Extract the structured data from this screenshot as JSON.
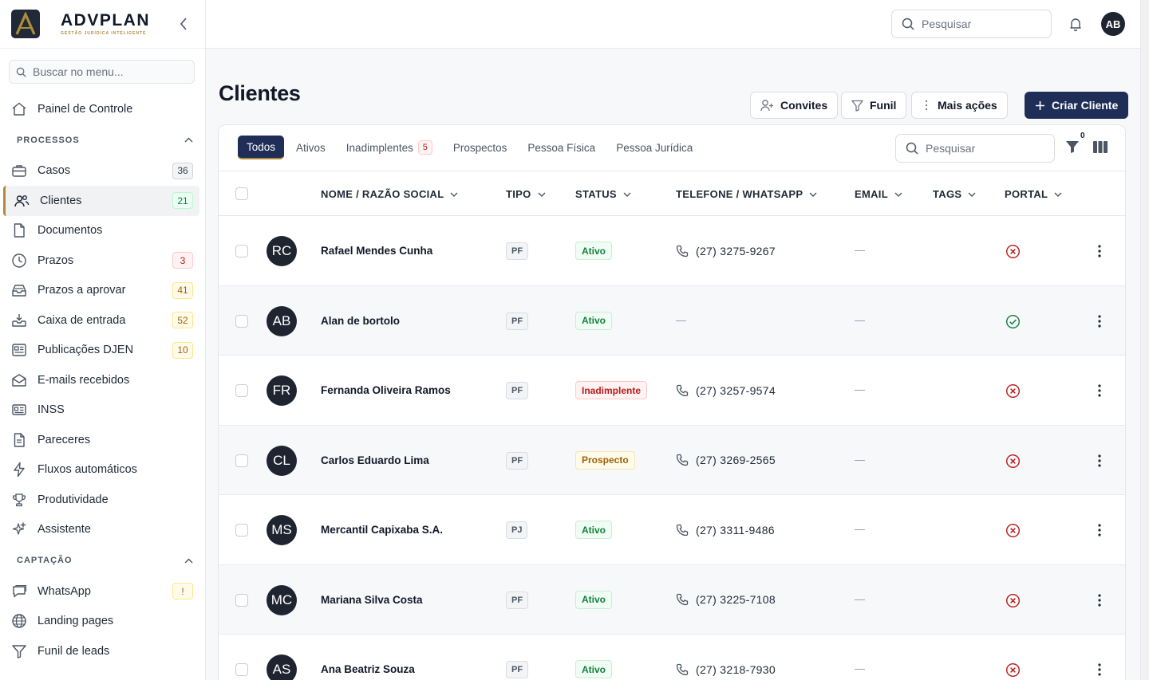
{
  "brand": {
    "name": "ADVPLAN",
    "tagline": "GESTÃO JURÍDICA INTELIGENTE",
    "accent": "#b08b3a",
    "primary": "#1e2e57"
  },
  "sidebar": {
    "search_placeholder": "Buscar no menu...",
    "top_item": {
      "label": "Painel de Controle",
      "icon": "home-icon"
    },
    "sections": [
      {
        "title": "PROCESSOS",
        "items": [
          {
            "label": "Casos",
            "icon": "briefcase-icon",
            "badge": "36",
            "badge_style": "gray"
          },
          {
            "label": "Clientes",
            "icon": "users-icon",
            "badge": "21",
            "badge_style": "green",
            "active": true
          },
          {
            "label": "Documentos",
            "icon": "file-icon"
          },
          {
            "label": "Prazos",
            "icon": "clock-icon",
            "badge": "3",
            "badge_style": "red"
          },
          {
            "label": "Prazos a aprovar",
            "icon": "inbox-stack-icon",
            "badge": "41",
            "badge_style": "amber"
          },
          {
            "label": "Caixa de entrada",
            "icon": "inbox-download-icon",
            "badge": "52",
            "badge_style": "amber"
          },
          {
            "label": "Publicações DJEN",
            "icon": "newspaper-icon",
            "badge": "10",
            "badge_style": "amber"
          },
          {
            "label": "E-mails recebidos",
            "icon": "mail-open-icon"
          },
          {
            "label": "INSS",
            "icon": "id-card-icon"
          },
          {
            "label": "Pareceres",
            "icon": "document-text-icon"
          },
          {
            "label": "Fluxos automáticos",
            "icon": "lightning-icon"
          },
          {
            "label": "Produtividade",
            "icon": "trophy-icon"
          },
          {
            "label": "Assistente",
            "icon": "sparkles-icon"
          }
        ]
      },
      {
        "title": "CAPTAÇÃO",
        "items": [
          {
            "label": "WhatsApp",
            "icon": "chat-bubble-icon",
            "badge": "!",
            "badge_style": "amber"
          },
          {
            "label": "Landing pages",
            "icon": "globe-icon"
          },
          {
            "label": "Funil de leads",
            "icon": "funnel-icon"
          }
        ]
      }
    ]
  },
  "topbar": {
    "search_placeholder": "Pesquisar",
    "user_initials": "AB"
  },
  "page": {
    "title": "Clientes",
    "actions": {
      "invites": "Convites",
      "funnel": "Funil",
      "more": "Mais ações",
      "create": "Criar Cliente"
    }
  },
  "tabs": [
    {
      "label": "Todos",
      "active": true
    },
    {
      "label": "Ativos"
    },
    {
      "label": "Inadimplentes",
      "count": "5"
    },
    {
      "label": "Prospectos"
    },
    {
      "label": "Pessoa Física"
    },
    {
      "label": "Pessoa Jurídica"
    }
  ],
  "table_tools": {
    "search_placeholder": "Pesquisar",
    "filter_count": "0"
  },
  "columns": [
    "NOME / RAZÃO SOCIAL",
    "TIPO",
    "STATUS",
    "TELEFONE / WHATSAPP",
    "EMAIL",
    "TAGS",
    "PORTAL"
  ],
  "rows": [
    {
      "initials": "RC",
      "name": "Rafael Mendes Cunha",
      "tipo": "PF",
      "status": "Ativo",
      "status_style": "ativo",
      "phone": "(27) 3275-9267",
      "portal": false
    },
    {
      "initials": "AB",
      "name": "Alan de bortolo",
      "tipo": "PF",
      "status": "Ativo",
      "status_style": "ativo",
      "phone": "",
      "portal": true
    },
    {
      "initials": "FR",
      "name": "Fernanda Oliveira Ramos",
      "tipo": "PF",
      "status": "Inadimplente",
      "status_style": "inad",
      "phone": "(27) 3257-9574",
      "portal": false
    },
    {
      "initials": "CL",
      "name": "Carlos Eduardo Lima",
      "tipo": "PF",
      "status": "Prospecto",
      "status_style": "prosp",
      "phone": "(27) 3269-2565",
      "portal": false
    },
    {
      "initials": "MS",
      "name": "Mercantil Capixaba S.A.",
      "tipo": "PJ",
      "status": "Ativo",
      "status_style": "ativo",
      "phone": "(27) 3311-9486",
      "portal": false
    },
    {
      "initials": "MC",
      "name": "Mariana Silva Costa",
      "tipo": "PF",
      "status": "Ativo",
      "status_style": "ativo",
      "phone": "(27) 3225-7108",
      "portal": false
    },
    {
      "initials": "AS",
      "name": "Ana Beatriz Souza",
      "tipo": "PF",
      "status": "Ativo",
      "status_style": "ativo",
      "phone": "(27) 3218-7930",
      "portal": false
    }
  ]
}
